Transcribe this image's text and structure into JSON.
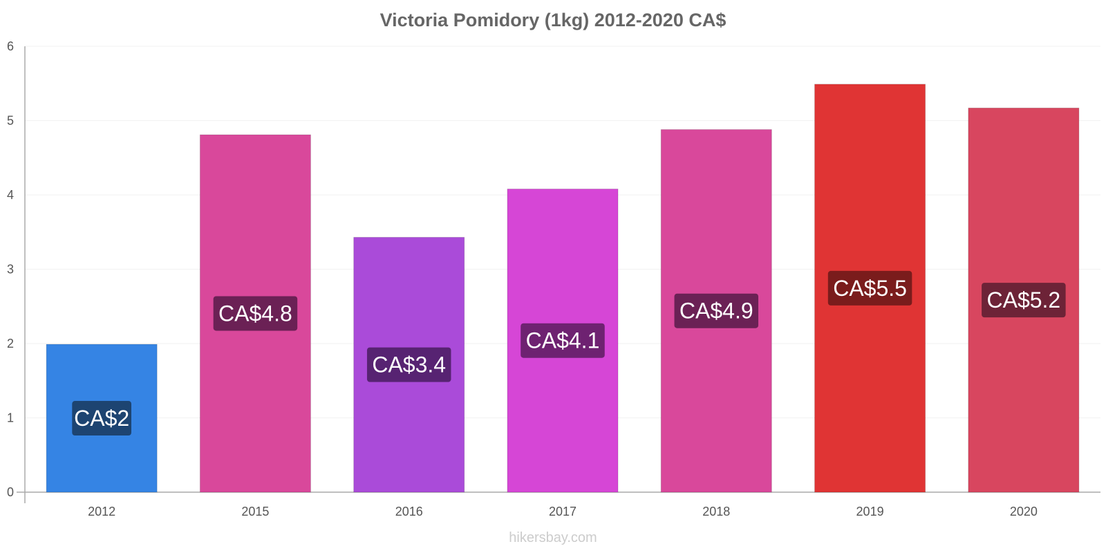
{
  "chart_data": {
    "type": "bar",
    "title": "Victoria Pomidory (1kg) 2012-2020 CA$",
    "xlabel": "",
    "ylabel": "",
    "categories": [
      "2012",
      "2015",
      "2016",
      "2017",
      "2018",
      "2019",
      "2020"
    ],
    "values": [
      1.99,
      4.81,
      3.43,
      4.08,
      4.88,
      5.49,
      5.17
    ],
    "data_labels": [
      "CA$2",
      "CA$4.8",
      "CA$3.4",
      "CA$4.1",
      "CA$4.9",
      "CA$5.5",
      "CA$5.2"
    ],
    "colors": [
      "#3584e4",
      "#d9489b",
      "#aa4bd9",
      "#d646d6",
      "#d9489b",
      "#e03434",
      "#d8465f"
    ],
    "label_colors": [
      "#1d4471",
      "#6b2155",
      "#572372",
      "#6e2271",
      "#6b2155",
      "#7a1c1c",
      "#6d2337"
    ],
    "ylim": [
      0,
      6
    ],
    "yticks": [
      0,
      1,
      2,
      3,
      4,
      5,
      6
    ],
    "grid": true,
    "legend": "none"
  },
  "watermark": "hikersbay.com"
}
